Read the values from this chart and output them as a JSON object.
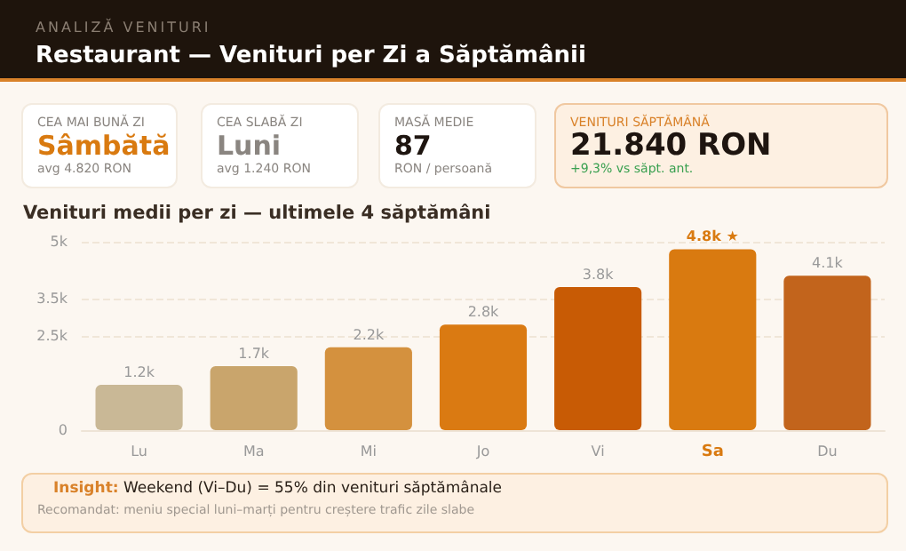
{
  "chart_data": [
    {
      "type": "other",
      "subtitle": "ANALIZĂ VENITURI",
      "title": "Restaurant — Venituri per Zi a Săptămânii"
    },
    {
      "type": "other",
      "title": "CEA MAI BUNĂ ZI",
      "annotations": [
        "Sâmbătă",
        "avg 4.820 RON"
      ]
    },
    {
      "type": "other",
      "title": "CEA SLABĂ ZI",
      "annotations": [
        "Luni",
        "avg 1.240 RON"
      ]
    },
    {
      "type": "other",
      "title": "MASĂ MEDIE",
      "annotations": [
        "87",
        "RON / persoană"
      ]
    },
    {
      "type": "other",
      "title": "VENITURI SĂPTĂMÂNĂ",
      "annotations": [
        "21.840 RON",
        "+9,3% vs săpt. ant."
      ]
    },
    {
      "type": "bar",
      "title": "Venituri medii per zi — ultimele 4 săptămâni",
      "categories": [
        "Lu",
        "Ma",
        "Mi",
        "Jo",
        "Vi",
        "Sa",
        "Du"
      ],
      "values": [
        1200,
        1700,
        2200,
        2800,
        3800,
        4800,
        4100
      ],
      "value_labels": [
        "1.2k",
        "1.7k",
        "2.2k",
        "2.8k",
        "3.8k",
        "4.8k ★",
        "4.1k"
      ],
      "colors": [
        "#c9b896",
        "#c9a56c",
        "#d4913e",
        "#da7a12",
        "#c85b05",
        "#d97a10",
        "#c2641c"
      ],
      "ylim": [
        0,
        5000
      ],
      "yticks": [
        0,
        {
          "value": 2500,
          "label": "2.5k"
        },
        {
          "value": 3500,
          "label": "3.5k"
        },
        {
          "value": 5000,
          "label": "5k"
        }
      ],
      "grid": "y"
    },
    {
      "type": "other",
      "title": "Insight:",
      "annotations": [
        "Weekend (Vi–Du) = 55% din venituri săptămânale",
        "Recomandat: meniu special luni–marți pentru creștere trafic zile slabe"
      ]
    }
  ]
}
